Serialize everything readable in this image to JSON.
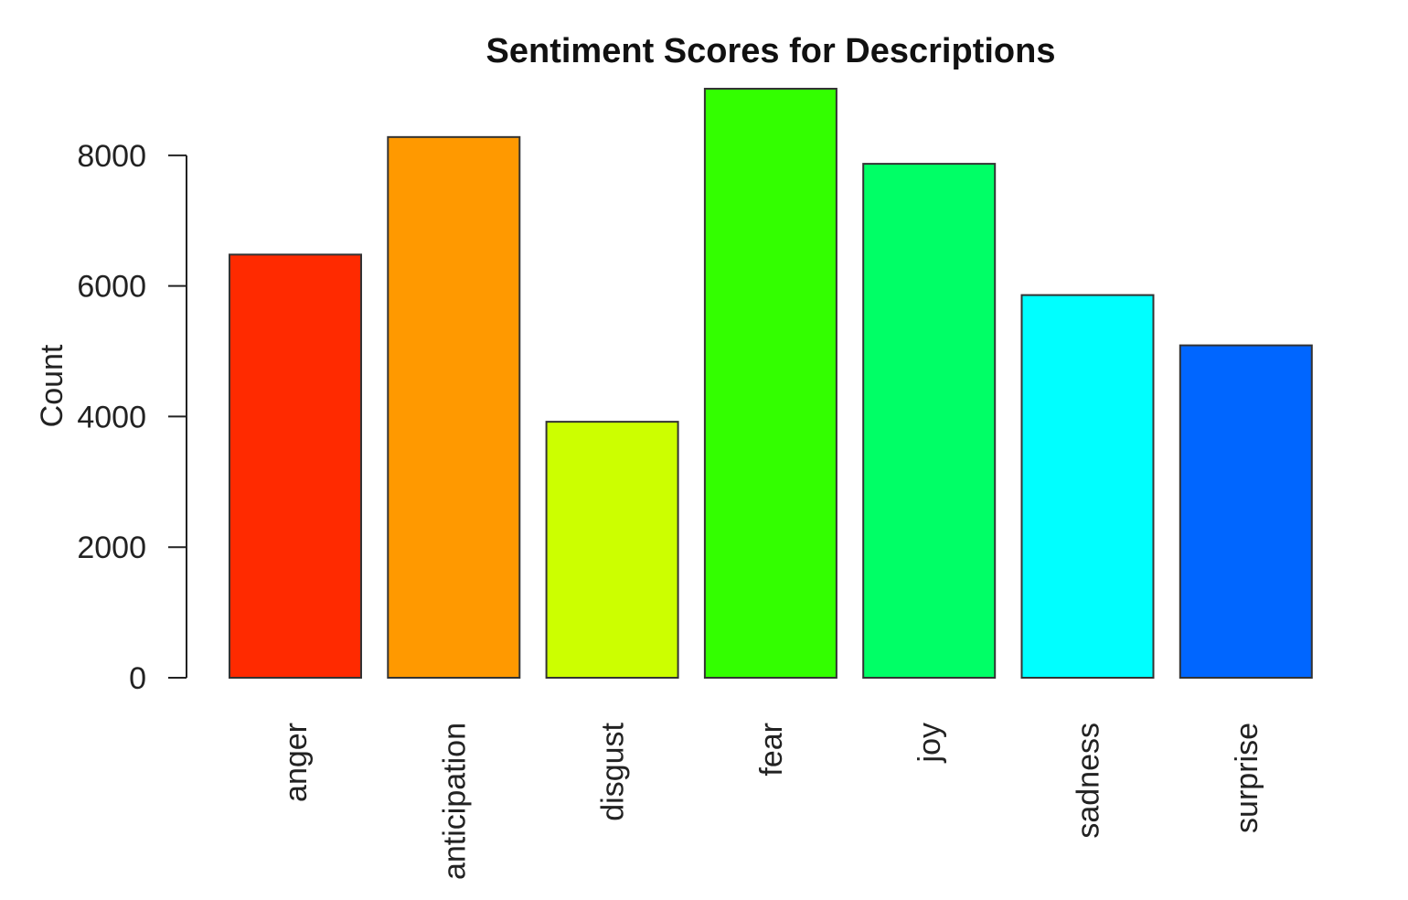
{
  "chart_data": {
    "type": "bar",
    "title": "Sentiment Scores for Descriptions",
    "xlabel": "",
    "ylabel": "Count",
    "categories": [
      "anger",
      "anticipation",
      "disgust",
      "fear",
      "joy",
      "sadness",
      "surprise"
    ],
    "values": [
      6480,
      8280,
      3920,
      9020,
      7870,
      5860,
      5090
    ],
    "colors": [
      "#FF2A00",
      "#FF9900",
      "#CCFF00",
      "#33FF00",
      "#00FF66",
      "#00FFFF",
      "#0066FF"
    ],
    "yticks": [
      0,
      2000,
      4000,
      6000,
      8000
    ],
    "ylim": [
      0,
      9020
    ],
    "grid": false,
    "legend": "none"
  }
}
